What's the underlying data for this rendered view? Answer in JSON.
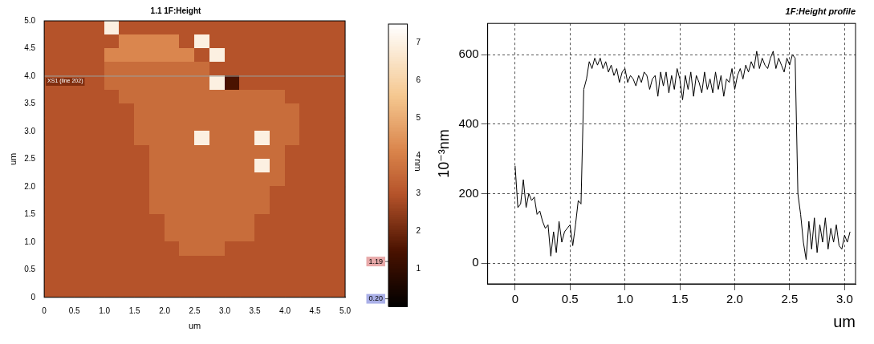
{
  "chart_data": [
    {
      "type": "heatmap",
      "title": "1.1 1F:Height",
      "x_label": "um",
      "y_label": "um",
      "grid": false,
      "xlim": [
        0,
        5
      ],
      "ylim": [
        0,
        5
      ],
      "xticks": [
        0,
        0.5,
        {
          "value": 1,
          "label": "1.0"
        },
        1.5,
        {
          "value": 2,
          "label": "2.0"
        },
        2.5,
        {
          "value": 3,
          "label": "3.0"
        },
        3.5,
        {
          "value": 4,
          "label": "4.0"
        },
        4.5,
        {
          "value": 5,
          "label": "5.0"
        }
      ],
      "yticks": [
        0,
        0.5,
        {
          "value": 1,
          "label": "1.0"
        },
        1.5,
        {
          "value": 2,
          "label": "2.0"
        },
        2.5,
        {
          "value": 3,
          "label": "3.0"
        },
        3.5,
        {
          "value": 4,
          "label": "4.0"
        },
        4.5,
        {
          "value": 5,
          "label": "5.0"
        }
      ],
      "cells": [
        [
          3,
          3,
          3,
          3,
          7,
          3,
          3,
          3,
          3,
          3,
          3,
          3,
          3,
          3,
          3,
          3,
          3,
          3,
          3,
          3
        ],
        [
          3,
          3,
          3,
          3,
          3,
          4.2,
          4.2,
          4.2,
          4.2,
          3,
          7,
          3,
          3,
          3,
          3,
          3,
          3,
          3,
          3,
          3
        ],
        [
          3,
          3,
          3,
          3,
          4.2,
          4.2,
          4.2,
          4.2,
          4.2,
          4.2,
          3,
          7,
          3,
          3,
          3,
          3,
          3,
          3,
          3,
          3
        ],
        [
          3,
          3,
          3,
          3,
          3.6,
          3.6,
          3.6,
          3.6,
          3.6,
          3.6,
          3.6,
          3,
          3,
          3,
          3,
          3,
          3,
          3,
          3,
          3
        ],
        [
          3,
          3,
          3,
          3,
          3.6,
          3.6,
          3.6,
          3.6,
          3.6,
          3.6,
          3.6,
          7,
          1.5,
          3,
          3,
          3,
          3,
          3,
          3,
          3
        ],
        [
          3,
          3,
          3,
          3,
          3,
          3.6,
          3.6,
          3.6,
          3.6,
          3.6,
          3.6,
          3.6,
          3.6,
          3.6,
          3.6,
          3.6,
          3,
          3,
          3,
          3
        ],
        [
          3,
          3,
          3,
          3,
          3,
          3,
          3.6,
          3.6,
          3.6,
          3.6,
          3.6,
          3.6,
          3.6,
          3.6,
          3.6,
          3.6,
          3.6,
          3,
          3,
          3
        ],
        [
          3,
          3,
          3,
          3,
          3,
          3,
          3.6,
          3.6,
          3.6,
          3.6,
          3.6,
          3.6,
          3.6,
          3.6,
          3.6,
          3.6,
          3.6,
          3,
          3,
          3
        ],
        [
          3,
          3,
          3,
          3,
          3,
          3,
          3.6,
          3.6,
          3.6,
          3.6,
          7,
          3.6,
          3.6,
          3.6,
          7,
          3.6,
          3.6,
          3,
          3,
          3
        ],
        [
          3,
          3,
          3,
          3,
          3,
          3,
          3,
          3.6,
          3.6,
          3.6,
          3.6,
          3.6,
          3.6,
          3.6,
          3.6,
          3.6,
          3,
          3,
          3,
          3
        ],
        [
          3,
          3,
          3,
          3,
          3,
          3,
          3,
          3.6,
          3.6,
          3.6,
          3.6,
          3.6,
          3.6,
          3.6,
          7,
          3.6,
          3,
          3,
          3,
          3
        ],
        [
          3,
          3,
          3,
          3,
          3,
          3,
          3,
          3.6,
          3.6,
          3.6,
          3.6,
          3.6,
          3.6,
          3.6,
          3.6,
          3.6,
          3,
          3,
          3,
          3
        ],
        [
          3,
          3,
          3,
          3,
          3,
          3,
          3,
          3.6,
          3.6,
          3.6,
          3.6,
          3.6,
          3.6,
          3.6,
          3.6,
          3,
          3,
          3,
          3,
          3
        ],
        [
          3,
          3,
          3,
          3,
          3,
          3,
          3,
          3.6,
          3.6,
          3.6,
          3.6,
          3.6,
          3.6,
          3.6,
          3.6,
          3,
          3,
          3,
          3,
          3
        ],
        [
          3,
          3,
          3,
          3,
          3,
          3,
          3,
          3,
          3.6,
          3.6,
          3.6,
          3.6,
          3.6,
          3.6,
          3,
          3,
          3,
          3,
          3,
          3
        ],
        [
          3,
          3,
          3,
          3,
          3,
          3,
          3,
          3,
          3.6,
          3.6,
          3.6,
          3.6,
          3.6,
          3.6,
          3,
          3,
          3,
          3,
          3,
          3
        ],
        [
          3,
          3,
          3,
          3,
          3,
          3,
          3,
          3,
          3,
          3.6,
          3.6,
          3.6,
          3,
          3,
          3,
          3,
          3,
          3,
          3,
          3
        ],
        [
          3,
          3,
          3,
          3,
          3,
          3,
          3,
          3,
          3,
          3,
          3,
          3,
          3,
          3,
          3,
          3,
          3,
          3,
          3,
          3
        ],
        [
          3,
          3,
          3,
          3,
          3,
          3,
          3,
          3,
          3,
          3,
          3,
          3,
          3,
          3,
          3,
          3,
          3,
          3,
          3,
          3
        ],
        [
          3,
          3,
          3,
          3,
          3,
          3,
          3,
          3,
          3,
          3,
          3,
          3,
          3,
          3,
          3,
          3,
          3,
          3,
          3,
          3
        ]
      ],
      "color_bar": {
        "label": "nm",
        "range": [
          0,
          7.5
        ],
        "ticks": [
          1,
          2,
          3,
          4,
          5,
          6,
          7
        ],
        "markers": [
          {
            "value": 1.19,
            "label": "1.19"
          },
          {
            "value": 0.2,
            "label": "0.20"
          }
        ]
      },
      "annotations": [
        {
          "text": "XS1 (line 202)",
          "y": 4
        }
      ]
    },
    {
      "type": "line",
      "title": "1F:Height profile",
      "x_label": "um",
      "y_label": "10⁻³nm",
      "grid": true,
      "color": "#000000",
      "xlim": [
        -0.25,
        3.1
      ],
      "ylim": [
        -60,
        690
      ],
      "xticks": [
        0,
        0.5,
        {
          "value": 1,
          "label": "1.0"
        },
        1.5,
        {
          "value": 2,
          "label": "2.0"
        },
        2.5,
        {
          "value": 3,
          "label": "3.0"
        }
      ],
      "yticks": [
        0,
        200,
        400,
        600
      ],
      "x": [
        0,
        0.025,
        0.05,
        0.075,
        0.1,
        0.125,
        0.15,
        0.175,
        0.2,
        0.225,
        0.25,
        0.275,
        0.3,
        0.325,
        0.35,
        0.375,
        0.4,
        0.425,
        0.45,
        0.475,
        0.5,
        0.525,
        0.55,
        0.575,
        0.6,
        0.625,
        0.65,
        0.675,
        0.7,
        0.725,
        0.75,
        0.775,
        0.8,
        0.825,
        0.85,
        0.875,
        0.9,
        0.925,
        0.95,
        0.975,
        1.0,
        1.025,
        1.05,
        1.075,
        1.1,
        1.125,
        1.15,
        1.175,
        1.2,
        1.225,
        1.25,
        1.275,
        1.3,
        1.325,
        1.35,
        1.375,
        1.4,
        1.425,
        1.45,
        1.475,
        1.5,
        1.525,
        1.55,
        1.575,
        1.6,
        1.625,
        1.65,
        1.675,
        1.7,
        1.725,
        1.75,
        1.775,
        1.8,
        1.825,
        1.85,
        1.875,
        1.9,
        1.925,
        1.95,
        1.975,
        2.0,
        2.025,
        2.05,
        2.075,
        2.1,
        2.125,
        2.15,
        2.175,
        2.2,
        2.225,
        2.25,
        2.275,
        2.3,
        2.325,
        2.35,
        2.375,
        2.4,
        2.425,
        2.45,
        2.475,
        2.5,
        2.525,
        2.55,
        2.575,
        2.6,
        2.625,
        2.65,
        2.675,
        2.7,
        2.725,
        2.75,
        2.775,
        2.8,
        2.825,
        2.85,
        2.875,
        2.9,
        2.925,
        2.95,
        2.975,
        3.0,
        3.025,
        3.05
      ],
      "values": [
        280,
        160,
        170,
        240,
        160,
        200,
        180,
        190,
        140,
        150,
        120,
        100,
        110,
        20,
        90,
        30,
        120,
        60,
        90,
        100,
        110,
        50,
        110,
        180,
        170,
        500,
        530,
        580,
        560,
        590,
        570,
        590,
        560,
        580,
        550,
        570,
        540,
        560,
        520,
        550,
        560,
        520,
        540,
        530,
        510,
        540,
        520,
        550,
        540,
        500,
        530,
        540,
        480,
        550,
        510,
        550,
        490,
        540,
        500,
        560,
        530,
        470,
        540,
        500,
        550,
        480,
        540,
        520,
        490,
        550,
        500,
        530,
        490,
        550,
        500,
        540,
        480,
        530,
        520,
        560,
        500,
        540,
        560,
        530,
        570,
        550,
        580,
        560,
        610,
        560,
        590,
        570,
        560,
        590,
        610,
        560,
        590,
        570,
        550,
        590,
        570,
        600,
        590,
        200,
        140,
        60,
        10,
        120,
        40,
        130,
        30,
        110,
        60,
        130,
        40,
        100,
        60,
        110,
        50,
        40,
        80,
        60,
        90
      ]
    }
  ]
}
